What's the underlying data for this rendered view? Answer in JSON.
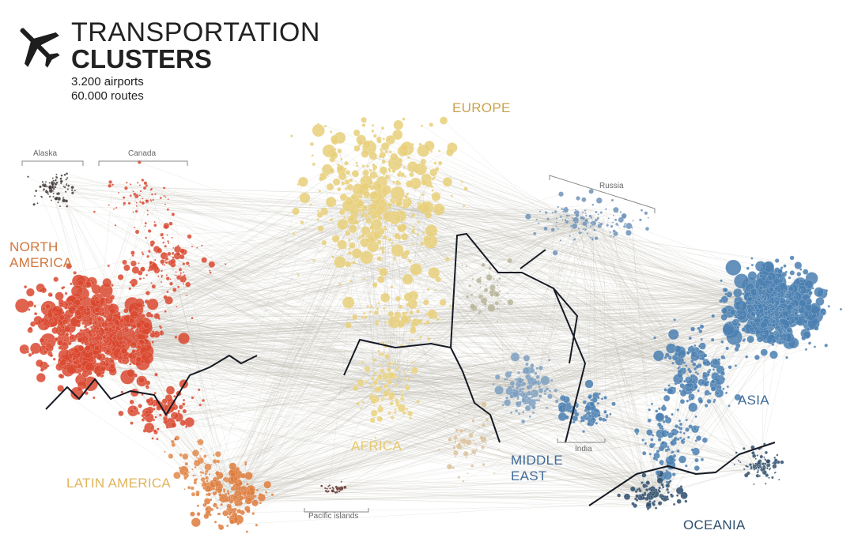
{
  "header": {
    "title_line1": "TRANSPORTATION",
    "title_line2": "CLUSTERS",
    "stat_airports": "3.200 airports",
    "stat_routes": "60.000 routes",
    "icon": "airplane-icon"
  },
  "regions": [
    {
      "id": "europe",
      "label": "EUROPE",
      "color": "#c9a34e"
    },
    {
      "id": "north-america",
      "label": "NORTH\nAMERICA",
      "color": "#d0763b"
    },
    {
      "id": "asia",
      "label": "ASIA",
      "color": "#3f6b96"
    },
    {
      "id": "middle-east",
      "label": "MIDDLE\nEAST",
      "color": "#3f6b96"
    },
    {
      "id": "africa",
      "label": "AFRICA",
      "color": "#e6c96b"
    },
    {
      "id": "latin-america",
      "label": "LATIN AMERICA",
      "color": "#e0b45a"
    },
    {
      "id": "oceania",
      "label": "OCEANIA",
      "color": "#2e4f70"
    }
  ],
  "subregions": [
    {
      "id": "alaska",
      "label": "Alaska"
    },
    {
      "id": "canada",
      "label": "Canada"
    },
    {
      "id": "russia",
      "label": "Russia"
    },
    {
      "id": "india",
      "label": "India"
    },
    {
      "id": "pacific-islands",
      "label": "Pacific islands"
    }
  ],
  "colors": {
    "north_america": "#d9482f",
    "europe": "#e8cf7a",
    "africa": "#ead27f",
    "latin_america": "#de7b3c",
    "asia": "#4a7fb0",
    "middle_east": "#7c9fbf",
    "oceania": "#2d4c6a",
    "edges": "#b9b6a8",
    "borders": "#151a24"
  }
}
